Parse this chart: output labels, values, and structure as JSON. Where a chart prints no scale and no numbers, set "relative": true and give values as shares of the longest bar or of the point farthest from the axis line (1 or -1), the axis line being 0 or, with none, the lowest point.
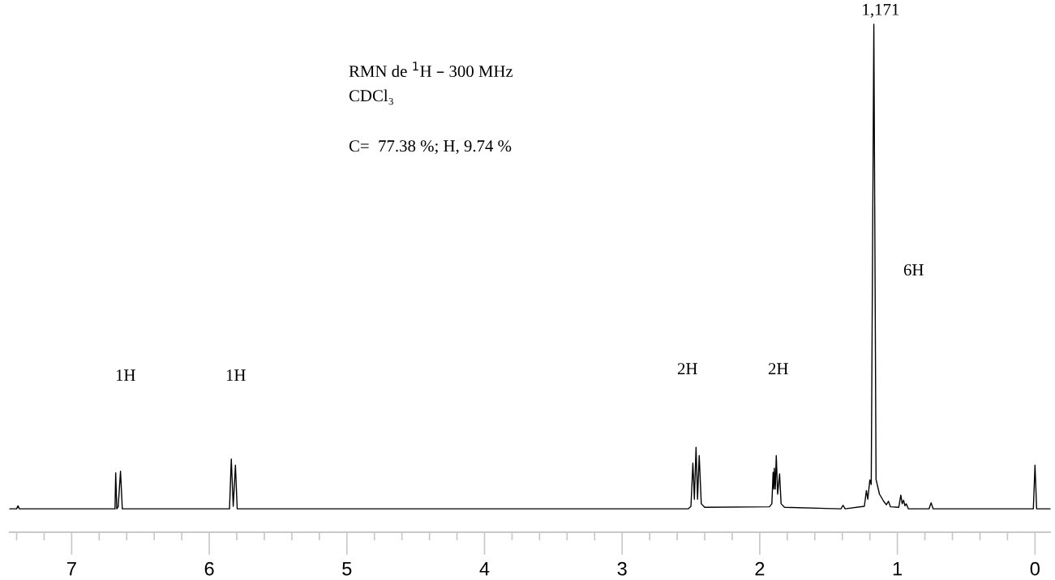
{
  "chart_data": {
    "type": "line",
    "relative": true,
    "color": "#000000",
    "x": [
      7.45,
      7.4,
      7.39,
      7.38,
      6.7,
      6.685,
      6.68,
      6.672,
      6.662,
      6.645,
      6.632,
      6.62,
      5.87,
      5.853,
      5.84,
      5.826,
      5.81,
      5.797,
      5.78,
      2.52,
      2.5,
      2.486,
      2.475,
      2.463,
      2.452,
      2.44,
      2.425,
      2.4,
      1.93,
      1.912,
      1.903,
      1.898,
      1.894,
      1.887,
      1.88,
      1.87,
      1.856,
      1.845,
      1.82,
      1.41,
      1.395,
      1.38,
      1.24,
      1.225,
      1.215,
      1.2,
      1.19,
      1.171,
      1.155,
      1.13,
      1.1,
      1.08,
      1.065,
      1.05,
      0.99,
      0.975,
      0.965,
      0.955,
      0.945,
      0.935,
      0.92,
      0.77,
      0.755,
      0.74,
      0.03,
      0.012,
      0.0,
      -0.012,
      -0.03,
      -0.11
    ],
    "values": [
      0.046,
      0.046,
      0.052,
      0.046,
      0.046,
      0.046,
      0.117,
      0.046,
      0.05,
      0.12,
      0.046,
      0.046,
      0.046,
      0.046,
      0.144,
      0.051,
      0.132,
      0.046,
      0.046,
      0.046,
      0.051,
      0.136,
      0.065,
      0.167,
      0.065,
      0.151,
      0.056,
      0.049,
      0.05,
      0.056,
      0.118,
      0.085,
      0.126,
      0.085,
      0.151,
      0.075,
      0.115,
      0.056,
      0.049,
      0.046,
      0.053,
      0.046,
      0.051,
      0.082,
      0.065,
      0.103,
      0.094,
      1.0,
      0.104,
      0.075,
      0.061,
      0.054,
      0.061,
      0.05,
      0.049,
      0.073,
      0.056,
      0.063,
      0.052,
      0.056,
      0.046,
      0.046,
      0.058,
      0.046,
      0.046,
      0.046,
      0.132,
      0.046,
      0.046,
      0.046
    ],
    "xlim": [
      7.45,
      -0.11
    ],
    "xticks": [
      7,
      6,
      5,
      4,
      3,
      2,
      1,
      0,
      {
        "value": 7.4,
        "label": null
      },
      {
        "value": 7.2,
        "label": null
      },
      {
        "value": 6.8,
        "label": null
      },
      {
        "value": 6.6,
        "label": null
      },
      {
        "value": 6.4,
        "label": null
      },
      {
        "value": 6.2,
        "label": null
      },
      {
        "value": 5.8,
        "label": null
      },
      {
        "value": 5.6,
        "label": null
      },
      {
        "value": 5.4,
        "label": null
      },
      {
        "value": 5.2,
        "label": null
      },
      {
        "value": 4.8,
        "label": null
      },
      {
        "value": 4.6,
        "label": null
      },
      {
        "value": 4.4,
        "label": null
      },
      {
        "value": 4.2,
        "label": null
      },
      {
        "value": 3.8,
        "label": null
      },
      {
        "value": 3.6,
        "label": null
      },
      {
        "value": 3.4,
        "label": null
      },
      {
        "value": 3.2,
        "label": null
      },
      {
        "value": 2.8,
        "label": null
      },
      {
        "value": 2.6,
        "label": null
      },
      {
        "value": 2.4,
        "label": null
      },
      {
        "value": 2.2,
        "label": null
      },
      {
        "value": 1.8,
        "label": null
      },
      {
        "value": 1.6,
        "label": null
      },
      {
        "value": 1.4,
        "label": null
      },
      {
        "value": 1.2,
        "label": null
      },
      {
        "value": 0.8,
        "label": null
      },
      {
        "value": 0.6,
        "label": null
      },
      {
        "value": 0.4,
        "label": null
      },
      {
        "value": 0.2,
        "label": null
      }
    ],
    "grid": false,
    "annotations": [
      "RMN de $^{1}$H – 300 MHz",
      "CDCl₃",
      "C=  77.38 %; H, 9.74 %",
      "1H",
      "1H",
      "2H",
      "2H",
      "6H",
      {
        "text": "1,171",
        "x": 1.171,
        "y": 1.0
      }
    ]
  }
}
